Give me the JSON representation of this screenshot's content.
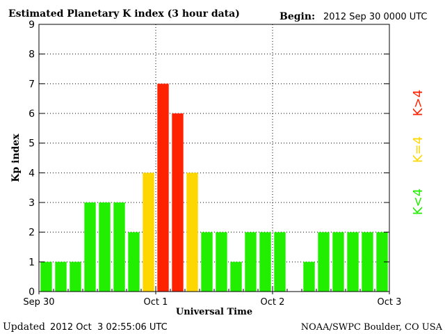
{
  "header": {
    "title": "Estimated Planetary K index (3 hour data)",
    "begin_label": "Begin:",
    "begin_value": "2012 Sep 30 0000 UTC"
  },
  "footer": {
    "updated_label": "Updated",
    "updated_value": "2012 Oct  3 02:55:06 UTC",
    "source": "NOAA/SWPC Boulder, CO USA"
  },
  "legend": [
    {
      "text": "K>4",
      "color": "#ff2200"
    },
    {
      "text": "K=4",
      "color": "#ffd700"
    },
    {
      "text": "K<4",
      "color": "#22ee00"
    }
  ],
  "chart_data": {
    "type": "bar",
    "title": "Estimated Planetary K index (3 hour data)",
    "xlabel": "Universal Time",
    "ylabel": "Kp index",
    "ylim": [
      0,
      9
    ],
    "yticks": [
      "0",
      "1",
      "2",
      "3",
      "4",
      "5",
      "6",
      "7",
      "8",
      "9"
    ],
    "x_tick_labels": [
      "Sep 30",
      "Oct 1",
      "Oct 2",
      "Oct 3"
    ],
    "grid": true,
    "colors": {
      "low": "#22ee00",
      "equal": "#ffd700",
      "high": "#ff2200"
    },
    "values": [
      1,
      1,
      1,
      3,
      3,
      3,
      2,
      4,
      7,
      6,
      4,
      2,
      2,
      1,
      2,
      2,
      2,
      null,
      1,
      2,
      2,
      2,
      2,
      2
    ]
  }
}
